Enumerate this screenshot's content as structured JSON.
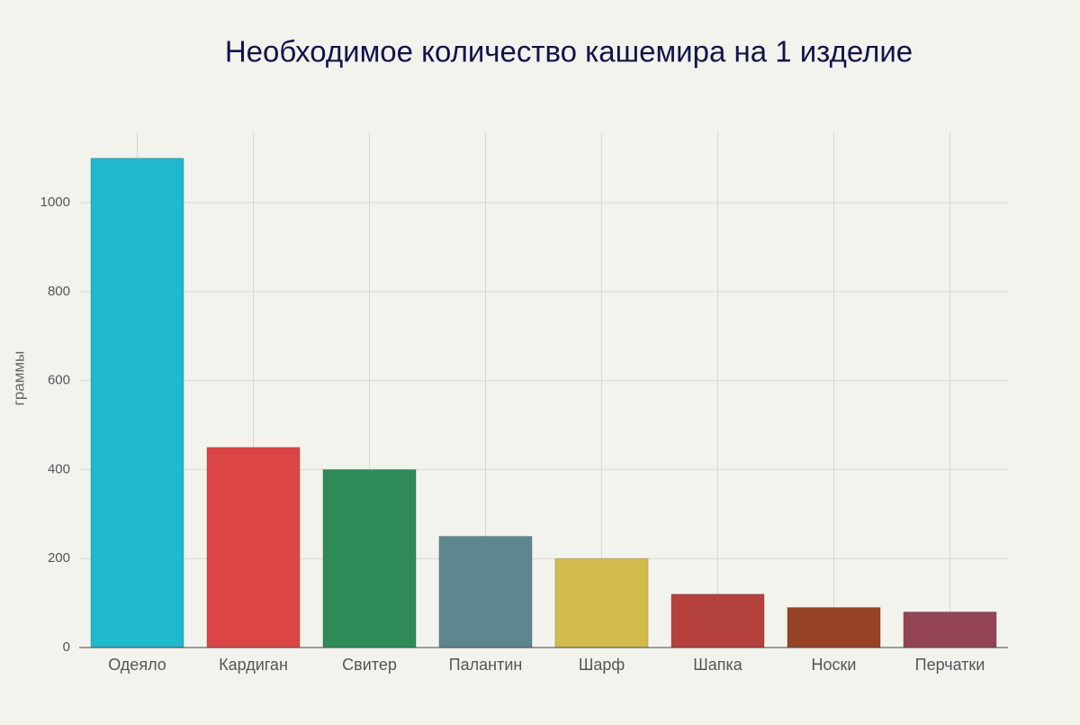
{
  "chart_data": {
    "type": "bar",
    "title": "Необходимое количество кашемира на 1 изделие",
    "y_label": "граммы",
    "categories": [
      "Одеяло",
      "Кардиган",
      "Свитер",
      "Палантин",
      "Шарф",
      "Шапка",
      "Носки",
      "Перчатки"
    ],
    "values": [
      1100,
      450,
      400,
      250,
      200,
      120,
      90,
      80
    ],
    "colors": [
      "#1fb8cd",
      "#db4545",
      "#2e8b57",
      "#5d878f",
      "#d2ba4c",
      "#b4413c",
      "#964325",
      "#944454"
    ],
    "ylim": [
      0,
      1158
    ],
    "yticks": [
      0,
      200,
      400,
      600,
      800,
      1000
    ],
    "grid": true
  }
}
